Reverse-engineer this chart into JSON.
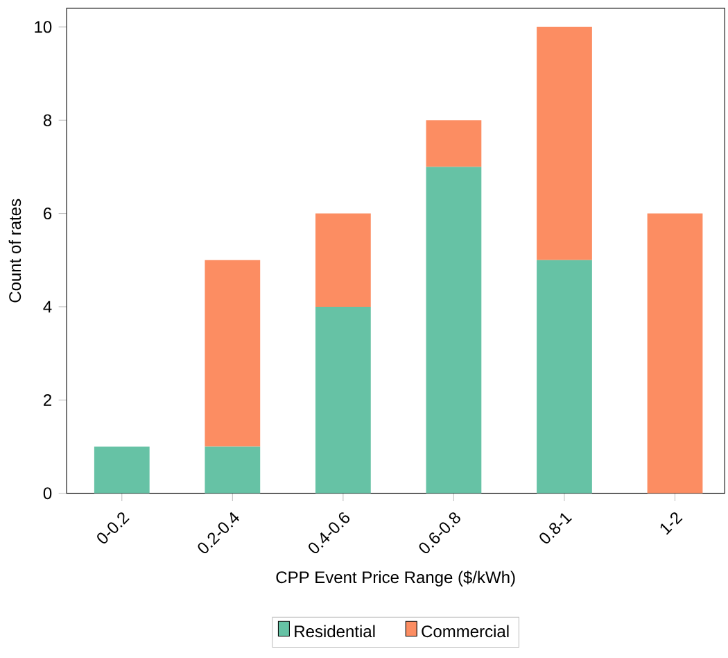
{
  "chart_data": {
    "type": "bar",
    "stacked": true,
    "xlabel": "CPP Event Price Range ($/kWh)",
    "ylabel": "Count of rates",
    "categories": [
      "0-0.2",
      "0.2-0.4",
      "0.4-0.6",
      "0.6-0.8",
      "0.8-1",
      "1-2"
    ],
    "series": [
      {
        "name": "Residential",
        "color": "#66c2a5",
        "values": [
          1,
          1,
          4,
          7,
          5,
          0
        ]
      },
      {
        "name": "Commercial",
        "color": "#fc8d62",
        "values": [
          0,
          4,
          2,
          1,
          5,
          6
        ]
      }
    ],
    "ylim": [
      0,
      10.4
    ],
    "yticks": [
      0,
      2,
      4,
      6,
      8,
      10
    ],
    "legend": "bottom"
  }
}
